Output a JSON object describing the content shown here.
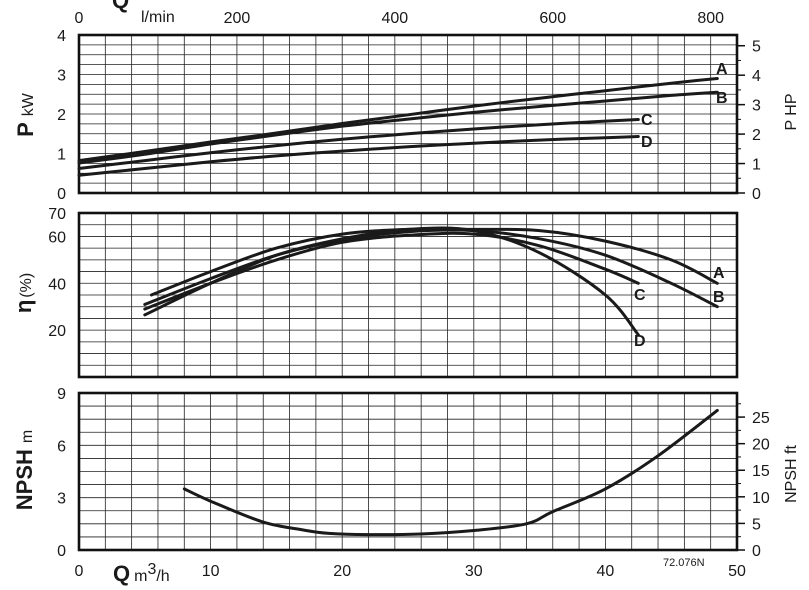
{
  "chart_data": {
    "type": "line",
    "code": "72.076N",
    "x_axis": {
      "label_symbol": "Q",
      "label_unit_prefix": "m",
      "label_unit_sup": "3",
      "label_unit_suffix": "/h",
      "range": [
        0,
        50
      ],
      "ticks": [
        0,
        10,
        20,
        30,
        40,
        50
      ]
    },
    "x_axis_top": {
      "label_symbol": "Q",
      "label_unit": "l/min",
      "ticks": [
        0,
        200,
        400,
        600,
        800
      ],
      "m3h_per_unit": 0.06
    },
    "panels": [
      {
        "id": "power",
        "ylabel_symbol": "P",
        "ylabel_unit": "kW",
        "ylim": [
          0,
          4
        ],
        "yticks": [
          0,
          1,
          2,
          3,
          4
        ],
        "ylabel_right": "P HP",
        "yticks_right": [
          0,
          1,
          2,
          3,
          4,
          5
        ],
        "right_per_left": 1.341,
        "series": [
          {
            "name": "A",
            "x": [
              0,
              5,
              10,
              15,
              20,
              25,
              30,
              35,
              40,
              45,
              48.5
            ],
            "y": [
              0.82,
              1.05,
              1.29,
              1.52,
              1.76,
              1.98,
              2.2,
              2.4,
              2.59,
              2.78,
              2.9
            ]
          },
          {
            "name": "B",
            "x": [
              0,
              5,
              10,
              15,
              20,
              25,
              30,
              35,
              40,
              45,
              48.5
            ],
            "y": [
              0.76,
              0.98,
              1.24,
              1.47,
              1.69,
              1.87,
              2.04,
              2.19,
              2.33,
              2.47,
              2.55
            ]
          },
          {
            "name": "C",
            "x": [
              0,
              5,
              10,
              15,
              20,
              25,
              30,
              35,
              40,
              42.5
            ],
            "y": [
              0.62,
              0.82,
              1.02,
              1.2,
              1.36,
              1.5,
              1.62,
              1.73,
              1.82,
              1.86
            ]
          },
          {
            "name": "D",
            "x": [
              0,
              5,
              10,
              15,
              20,
              25,
              30,
              35,
              40,
              42.5
            ],
            "y": [
              0.45,
              0.62,
              0.79,
              0.94,
              1.06,
              1.17,
              1.26,
              1.34,
              1.4,
              1.43
            ]
          }
        ]
      },
      {
        "id": "efficiency",
        "ylabel_symbol": "η",
        "ylabel_unit": "(%)",
        "ylim": [
          0,
          70
        ],
        "yticks": [
          20,
          40,
          60,
          70
        ],
        "series": [
          {
            "name": "A",
            "x": [
              5.5,
              10,
              15,
              20,
              25,
              30,
              35,
              40,
              45,
              48.5
            ],
            "y": [
              35,
              45,
              55,
              61,
              63,
              63,
              62.5,
              58,
              50,
              40
            ]
          },
          {
            "name": "B",
            "x": [
              5,
              10,
              15,
              20,
              25,
              30,
              35,
              40,
              45,
              48.5
            ],
            "y": [
              31,
              42,
              52,
              58.5,
              62,
              62.5,
              59,
              52,
              40,
              30
            ]
          },
          {
            "name": "C",
            "x": [
              5,
              10,
              15,
              20,
              25,
              30,
              35,
              40,
              42.5
            ],
            "y": [
              29,
              40,
              50,
              57.5,
              60.5,
              61,
              56,
              46,
              40
            ]
          },
          {
            "name": "D",
            "x": [
              5,
              10,
              15,
              20,
              25,
              30,
              35,
              40,
              42.5
            ],
            "y": [
              26.5,
              40,
              52,
              59,
              63,
              62.5,
              53,
              35,
              18
            ]
          }
        ]
      },
      {
        "id": "npsh",
        "ylabel_symbol": "NPSH",
        "ylabel_unit": "m",
        "ylim": [
          0,
          9
        ],
        "yticks": [
          0,
          3,
          6,
          9
        ],
        "ylabel_right": "NPSH ft",
        "yticks_right": [
          0,
          5,
          10,
          15,
          20,
          25
        ],
        "right_per_left": 3.281,
        "series": [
          {
            "name": "",
            "x": [
              8,
              10,
              14,
              17,
              19,
              22,
              26,
              30,
              34,
              36,
              40,
              44,
              48.5
            ],
            "y": [
              3.5,
              2.8,
              1.6,
              1.15,
              0.95,
              0.88,
              0.92,
              1.12,
              1.5,
              2.2,
              3.5,
              5.4,
              8.0
            ]
          }
        ]
      }
    ]
  }
}
